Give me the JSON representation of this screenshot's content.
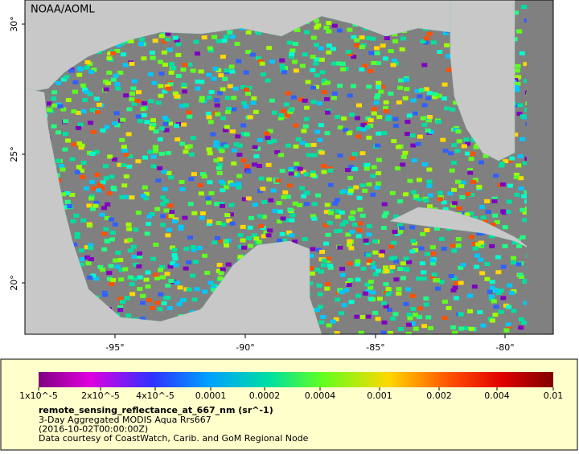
{
  "map": {
    "credit": "NOAA/AOML",
    "lat_labels": [
      "30°",
      "25°",
      "20°"
    ],
    "lon_labels": [
      "-95°",
      "-90°",
      "-85°",
      "-80°"
    ],
    "colorbar": {
      "labels": [
        "1x10^-5",
        "2x10^-5",
        "4x10^-5",
        "0.0001",
        "0.0002",
        "0.0004",
        "0.001",
        "0.002",
        "0.004",
        "0.01"
      ]
    },
    "variable": "remote_sensing_reflectance_at_667_nm (sr^-1)",
    "description": [
      "3-Day Aggregated MODIS Aqua Rrs667",
      "(2016-10-02T00:00:00Z)",
      "Data courtesy of CoastWatch, Carib. and GoM Regional Node"
    ]
  }
}
